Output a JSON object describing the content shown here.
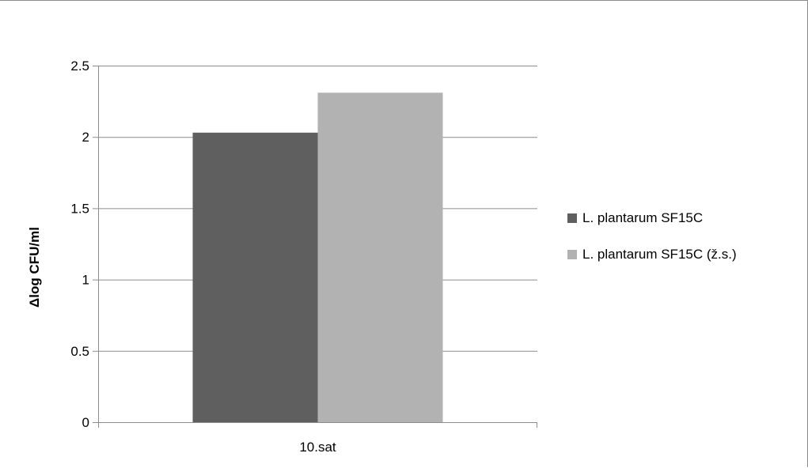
{
  "chart_data": {
    "type": "bar",
    "categories": [
      "10.sat"
    ],
    "series": [
      {
        "name": "L. plantarum SF15C",
        "values": [
          2.03
        ],
        "color": "#5f5f5f"
      },
      {
        "name": "L. plantarum SF15C (ž.s.)",
        "values": [
          2.31
        ],
        "color": "#b2b2b2"
      }
    ],
    "title": "",
    "xlabel": "",
    "ylabel": "Δlog CFU/ml",
    "ylim": [
      0,
      2.5
    ],
    "yticks": [
      "0",
      "0.5",
      "1",
      "1.5",
      "2",
      "2.5"
    ],
    "ytick_values": [
      0,
      0.5,
      1,
      1.5,
      2,
      2.5
    ],
    "grid": true,
    "legend_position": "right",
    "gridline_color": "#8c8c8c",
    "axis_color": "#8c8c8c"
  }
}
